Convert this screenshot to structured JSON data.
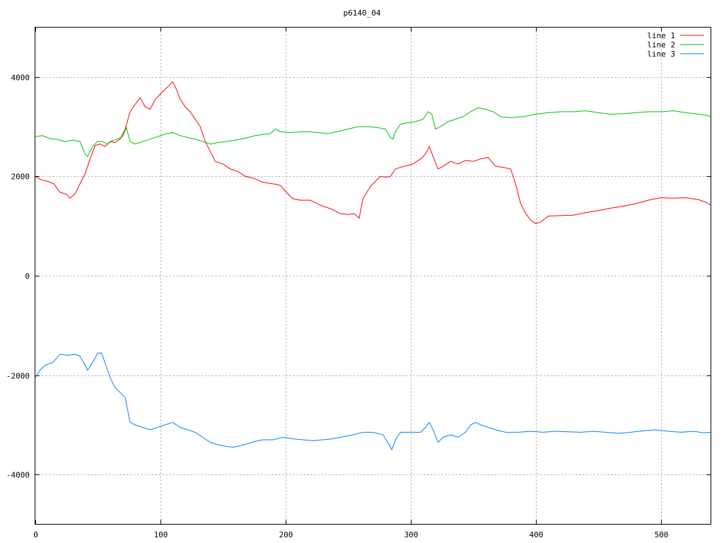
{
  "chart_data": {
    "type": "line",
    "title": "p6140_04",
    "xlabel": "",
    "ylabel": "",
    "xlim": [
      0,
      540
    ],
    "ylim": [
      -5000,
      5000
    ],
    "xticks": [
      0,
      100,
      200,
      300,
      400,
      500
    ],
    "yticks": [
      -4000,
      -2000,
      0,
      2000,
      4000
    ],
    "xtick_labels": [
      "0",
      "100",
      "200",
      "300",
      "400",
      "500"
    ],
    "ytick_labels": [
      "-4000",
      "-2000",
      "0",
      "2000",
      "4000"
    ],
    "grid": true,
    "legend_position": "top-right",
    "series": [
      {
        "name": "line 1",
        "color": "#ff0000",
        "points": [
          [
            0,
            2000
          ],
          [
            5,
            1930
          ],
          [
            10,
            1900
          ],
          [
            15,
            1850
          ],
          [
            20,
            1680
          ],
          [
            25,
            1640
          ],
          [
            28,
            1560
          ],
          [
            32,
            1650
          ],
          [
            36,
            1850
          ],
          [
            40,
            2050
          ],
          [
            44,
            2350
          ],
          [
            48,
            2620
          ],
          [
            52,
            2650
          ],
          [
            56,
            2600
          ],
          [
            60,
            2700
          ],
          [
            64,
            2680
          ],
          [
            68,
            2750
          ],
          [
            72,
            2950
          ],
          [
            76,
            3300
          ],
          [
            80,
            3450
          ],
          [
            84,
            3580
          ],
          [
            88,
            3400
          ],
          [
            92,
            3350
          ],
          [
            96,
            3550
          ],
          [
            100,
            3650
          ],
          [
            104,
            3750
          ],
          [
            108,
            3850
          ],
          [
            110,
            3900
          ],
          [
            113,
            3750
          ],
          [
            116,
            3550
          ],
          [
            120,
            3400
          ],
          [
            124,
            3300
          ],
          [
            128,
            3150
          ],
          [
            132,
            3000
          ],
          [
            136,
            2700
          ],
          [
            140,
            2500
          ],
          [
            144,
            2300
          ],
          [
            150,
            2250
          ],
          [
            156,
            2150
          ],
          [
            162,
            2100
          ],
          [
            168,
            2000
          ],
          [
            175,
            1960
          ],
          [
            182,
            1880
          ],
          [
            190,
            1850
          ],
          [
            196,
            1820
          ],
          [
            200,
            1700
          ],
          [
            206,
            1550
          ],
          [
            212,
            1520
          ],
          [
            220,
            1520
          ],
          [
            228,
            1420
          ],
          [
            236,
            1350
          ],
          [
            244,
            1250
          ],
          [
            250,
            1230
          ],
          [
            255,
            1250
          ],
          [
            259,
            1160
          ],
          [
            262,
            1550
          ],
          [
            268,
            1800
          ],
          [
            272,
            1900
          ],
          [
            276,
            2000
          ],
          [
            280,
            1980
          ],
          [
            284,
            2000
          ],
          [
            288,
            2150
          ],
          [
            292,
            2180
          ],
          [
            298,
            2220
          ],
          [
            302,
            2250
          ],
          [
            308,
            2350
          ],
          [
            312,
            2450
          ],
          [
            315,
            2600
          ],
          [
            318,
            2400
          ],
          [
            322,
            2150
          ],
          [
            326,
            2200
          ],
          [
            332,
            2300
          ],
          [
            338,
            2250
          ],
          [
            344,
            2320
          ],
          [
            350,
            2300
          ],
          [
            356,
            2350
          ],
          [
            362,
            2380
          ],
          [
            368,
            2200
          ],
          [
            374,
            2180
          ],
          [
            380,
            2150
          ],
          [
            384,
            1850
          ],
          [
            388,
            1450
          ],
          [
            392,
            1250
          ],
          [
            396,
            1120
          ],
          [
            400,
            1050
          ],
          [
            404,
            1080
          ],
          [
            410,
            1200
          ],
          [
            420,
            1210
          ],
          [
            430,
            1220
          ],
          [
            440,
            1270
          ],
          [
            450,
            1310
          ],
          [
            460,
            1360
          ],
          [
            470,
            1400
          ],
          [
            480,
            1450
          ],
          [
            490,
            1520
          ],
          [
            500,
            1570
          ],
          [
            510,
            1560
          ],
          [
            520,
            1570
          ],
          [
            530,
            1530
          ],
          [
            536,
            1480
          ],
          [
            540,
            1420
          ]
        ]
      },
      {
        "name": "line 2",
        "color": "#00c000",
        "points": [
          [
            0,
            2800
          ],
          [
            6,
            2820
          ],
          [
            12,
            2760
          ],
          [
            18,
            2740
          ],
          [
            24,
            2700
          ],
          [
            30,
            2730
          ],
          [
            36,
            2700
          ],
          [
            40,
            2450
          ],
          [
            42,
            2400
          ],
          [
            46,
            2600
          ],
          [
            50,
            2700
          ],
          [
            54,
            2700
          ],
          [
            58,
            2650
          ],
          [
            62,
            2720
          ],
          [
            66,
            2750
          ],
          [
            70,
            2800
          ],
          [
            73,
            2980
          ],
          [
            76,
            2700
          ],
          [
            80,
            2650
          ],
          [
            86,
            2700
          ],
          [
            92,
            2750
          ],
          [
            98,
            2800
          ],
          [
            104,
            2850
          ],
          [
            110,
            2880
          ],
          [
            116,
            2820
          ],
          [
            122,
            2780
          ],
          [
            128,
            2750
          ],
          [
            134,
            2700
          ],
          [
            140,
            2650
          ],
          [
            146,
            2680
          ],
          [
            152,
            2700
          ],
          [
            158,
            2720
          ],
          [
            164,
            2750
          ],
          [
            170,
            2780
          ],
          [
            176,
            2820
          ],
          [
            182,
            2840
          ],
          [
            188,
            2860
          ],
          [
            192,
            2950
          ],
          [
            196,
            2900
          ],
          [
            202,
            2880
          ],
          [
            210,
            2890
          ],
          [
            218,
            2900
          ],
          [
            226,
            2880
          ],
          [
            234,
            2860
          ],
          [
            242,
            2900
          ],
          [
            250,
            2950
          ],
          [
            258,
            3000
          ],
          [
            266,
            3000
          ],
          [
            274,
            2980
          ],
          [
            280,
            2950
          ],
          [
            284,
            2780
          ],
          [
            286,
            2750
          ],
          [
            288,
            2900
          ],
          [
            292,
            3050
          ],
          [
            298,
            3080
          ],
          [
            304,
            3100
          ],
          [
            310,
            3150
          ],
          [
            314,
            3300
          ],
          [
            317,
            3250
          ],
          [
            320,
            2950
          ],
          [
            324,
            3000
          ],
          [
            330,
            3100
          ],
          [
            336,
            3150
          ],
          [
            342,
            3200
          ],
          [
            348,
            3300
          ],
          [
            354,
            3380
          ],
          [
            360,
            3350
          ],
          [
            366,
            3300
          ],
          [
            372,
            3200
          ],
          [
            380,
            3180
          ],
          [
            390,
            3200
          ],
          [
            400,
            3250
          ],
          [
            410,
            3280
          ],
          [
            420,
            3300
          ],
          [
            430,
            3300
          ],
          [
            440,
            3320
          ],
          [
            450,
            3280
          ],
          [
            460,
            3250
          ],
          [
            470,
            3260
          ],
          [
            480,
            3280
          ],
          [
            490,
            3300
          ],
          [
            500,
            3300
          ],
          [
            510,
            3320
          ],
          [
            520,
            3280
          ],
          [
            530,
            3250
          ],
          [
            536,
            3230
          ],
          [
            540,
            3200
          ]
        ]
      },
      {
        "name": "line 3",
        "color": "#0080ff",
        "points": [
          [
            0,
            -2050
          ],
          [
            4,
            -1900
          ],
          [
            8,
            -1800
          ],
          [
            14,
            -1750
          ],
          [
            20,
            -1580
          ],
          [
            26,
            -1600
          ],
          [
            32,
            -1580
          ],
          [
            36,
            -1620
          ],
          [
            40,
            -1800
          ],
          [
            42,
            -1900
          ],
          [
            46,
            -1750
          ],
          [
            50,
            -1560
          ],
          [
            53,
            -1550
          ],
          [
            56,
            -1750
          ],
          [
            60,
            -2050
          ],
          [
            64,
            -2250
          ],
          [
            68,
            -2350
          ],
          [
            72,
            -2450
          ],
          [
            74,
            -2700
          ],
          [
            76,
            -2950
          ],
          [
            80,
            -3000
          ],
          [
            86,
            -3050
          ],
          [
            92,
            -3100
          ],
          [
            98,
            -3050
          ],
          [
            104,
            -3000
          ],
          [
            110,
            -2950
          ],
          [
            116,
            -3050
          ],
          [
            122,
            -3100
          ],
          [
            128,
            -3150
          ],
          [
            134,
            -3250
          ],
          [
            140,
            -3350
          ],
          [
            146,
            -3400
          ],
          [
            152,
            -3430
          ],
          [
            158,
            -3450
          ],
          [
            164,
            -3420
          ],
          [
            170,
            -3380
          ],
          [
            176,
            -3330
          ],
          [
            182,
            -3300
          ],
          [
            190,
            -3300
          ],
          [
            198,
            -3250
          ],
          [
            206,
            -3280
          ],
          [
            214,
            -3300
          ],
          [
            222,
            -3320
          ],
          [
            230,
            -3300
          ],
          [
            238,
            -3280
          ],
          [
            246,
            -3240
          ],
          [
            254,
            -3200
          ],
          [
            262,
            -3150
          ],
          [
            270,
            -3150
          ],
          [
            278,
            -3200
          ],
          [
            283,
            -3400
          ],
          [
            285,
            -3500
          ],
          [
            288,
            -3300
          ],
          [
            292,
            -3150
          ],
          [
            300,
            -3150
          ],
          [
            308,
            -3150
          ],
          [
            312,
            -3050
          ],
          [
            315,
            -2950
          ],
          [
            318,
            -3100
          ],
          [
            322,
            -3350
          ],
          [
            326,
            -3250
          ],
          [
            332,
            -3200
          ],
          [
            338,
            -3250
          ],
          [
            344,
            -3150
          ],
          [
            348,
            -3000
          ],
          [
            352,
            -2950
          ],
          [
            356,
            -3000
          ],
          [
            362,
            -3050
          ],
          [
            368,
            -3100
          ],
          [
            376,
            -3150
          ],
          [
            386,
            -3150
          ],
          [
            396,
            -3130
          ],
          [
            406,
            -3150
          ],
          [
            416,
            -3130
          ],
          [
            426,
            -3140
          ],
          [
            436,
            -3150
          ],
          [
            446,
            -3130
          ],
          [
            456,
            -3150
          ],
          [
            466,
            -3170
          ],
          [
            476,
            -3150
          ],
          [
            486,
            -3120
          ],
          [
            496,
            -3100
          ],
          [
            506,
            -3130
          ],
          [
            516,
            -3150
          ],
          [
            526,
            -3130
          ],
          [
            534,
            -3160
          ],
          [
            540,
            -3150
          ]
        ]
      }
    ]
  }
}
